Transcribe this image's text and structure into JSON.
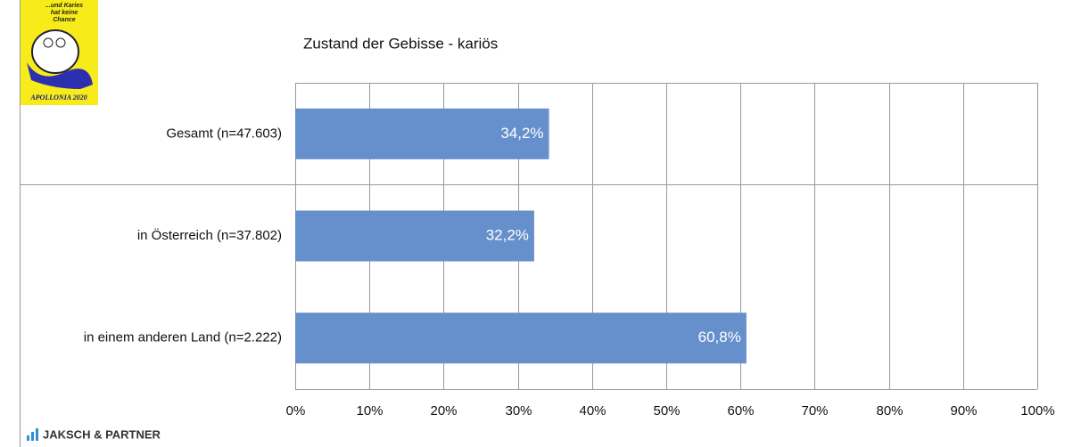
{
  "logo": {
    "lines": [
      "...und Karies",
      "hat keine",
      "Chance"
    ],
    "caption": "APOLLONIA 2020"
  },
  "footer": {
    "brand": "JAKSCH & PARTNER"
  },
  "chart_data": {
    "type": "bar",
    "orientation": "horizontal",
    "title": "Zustand der Gebisse - kariös",
    "categories": [
      "Gesamt (n=47.603)",
      "in Österreich (n=37.802)",
      "in einem anderen Land (n=2.222)"
    ],
    "values": [
      34.2,
      32.2,
      60.8
    ],
    "value_labels": [
      "34,2%",
      "32,2%",
      "60,8%"
    ],
    "color": "#6690cc",
    "xlim": [
      0,
      100
    ],
    "xticks": [
      {
        "value": 0,
        "label": "0%"
      },
      {
        "value": 10,
        "label": "10%"
      },
      {
        "value": 20,
        "label": "20%"
      },
      {
        "value": 30,
        "label": "30%"
      },
      {
        "value": 40,
        "label": "40%"
      },
      {
        "value": 50,
        "label": "50%"
      },
      {
        "value": 60,
        "label": "60%"
      },
      {
        "value": 70,
        "label": "70%"
      },
      {
        "value": 80,
        "label": "80%"
      },
      {
        "value": 90,
        "label": "90%"
      },
      {
        "value": 100,
        "label": "100%"
      }
    ],
    "grid": true
  }
}
